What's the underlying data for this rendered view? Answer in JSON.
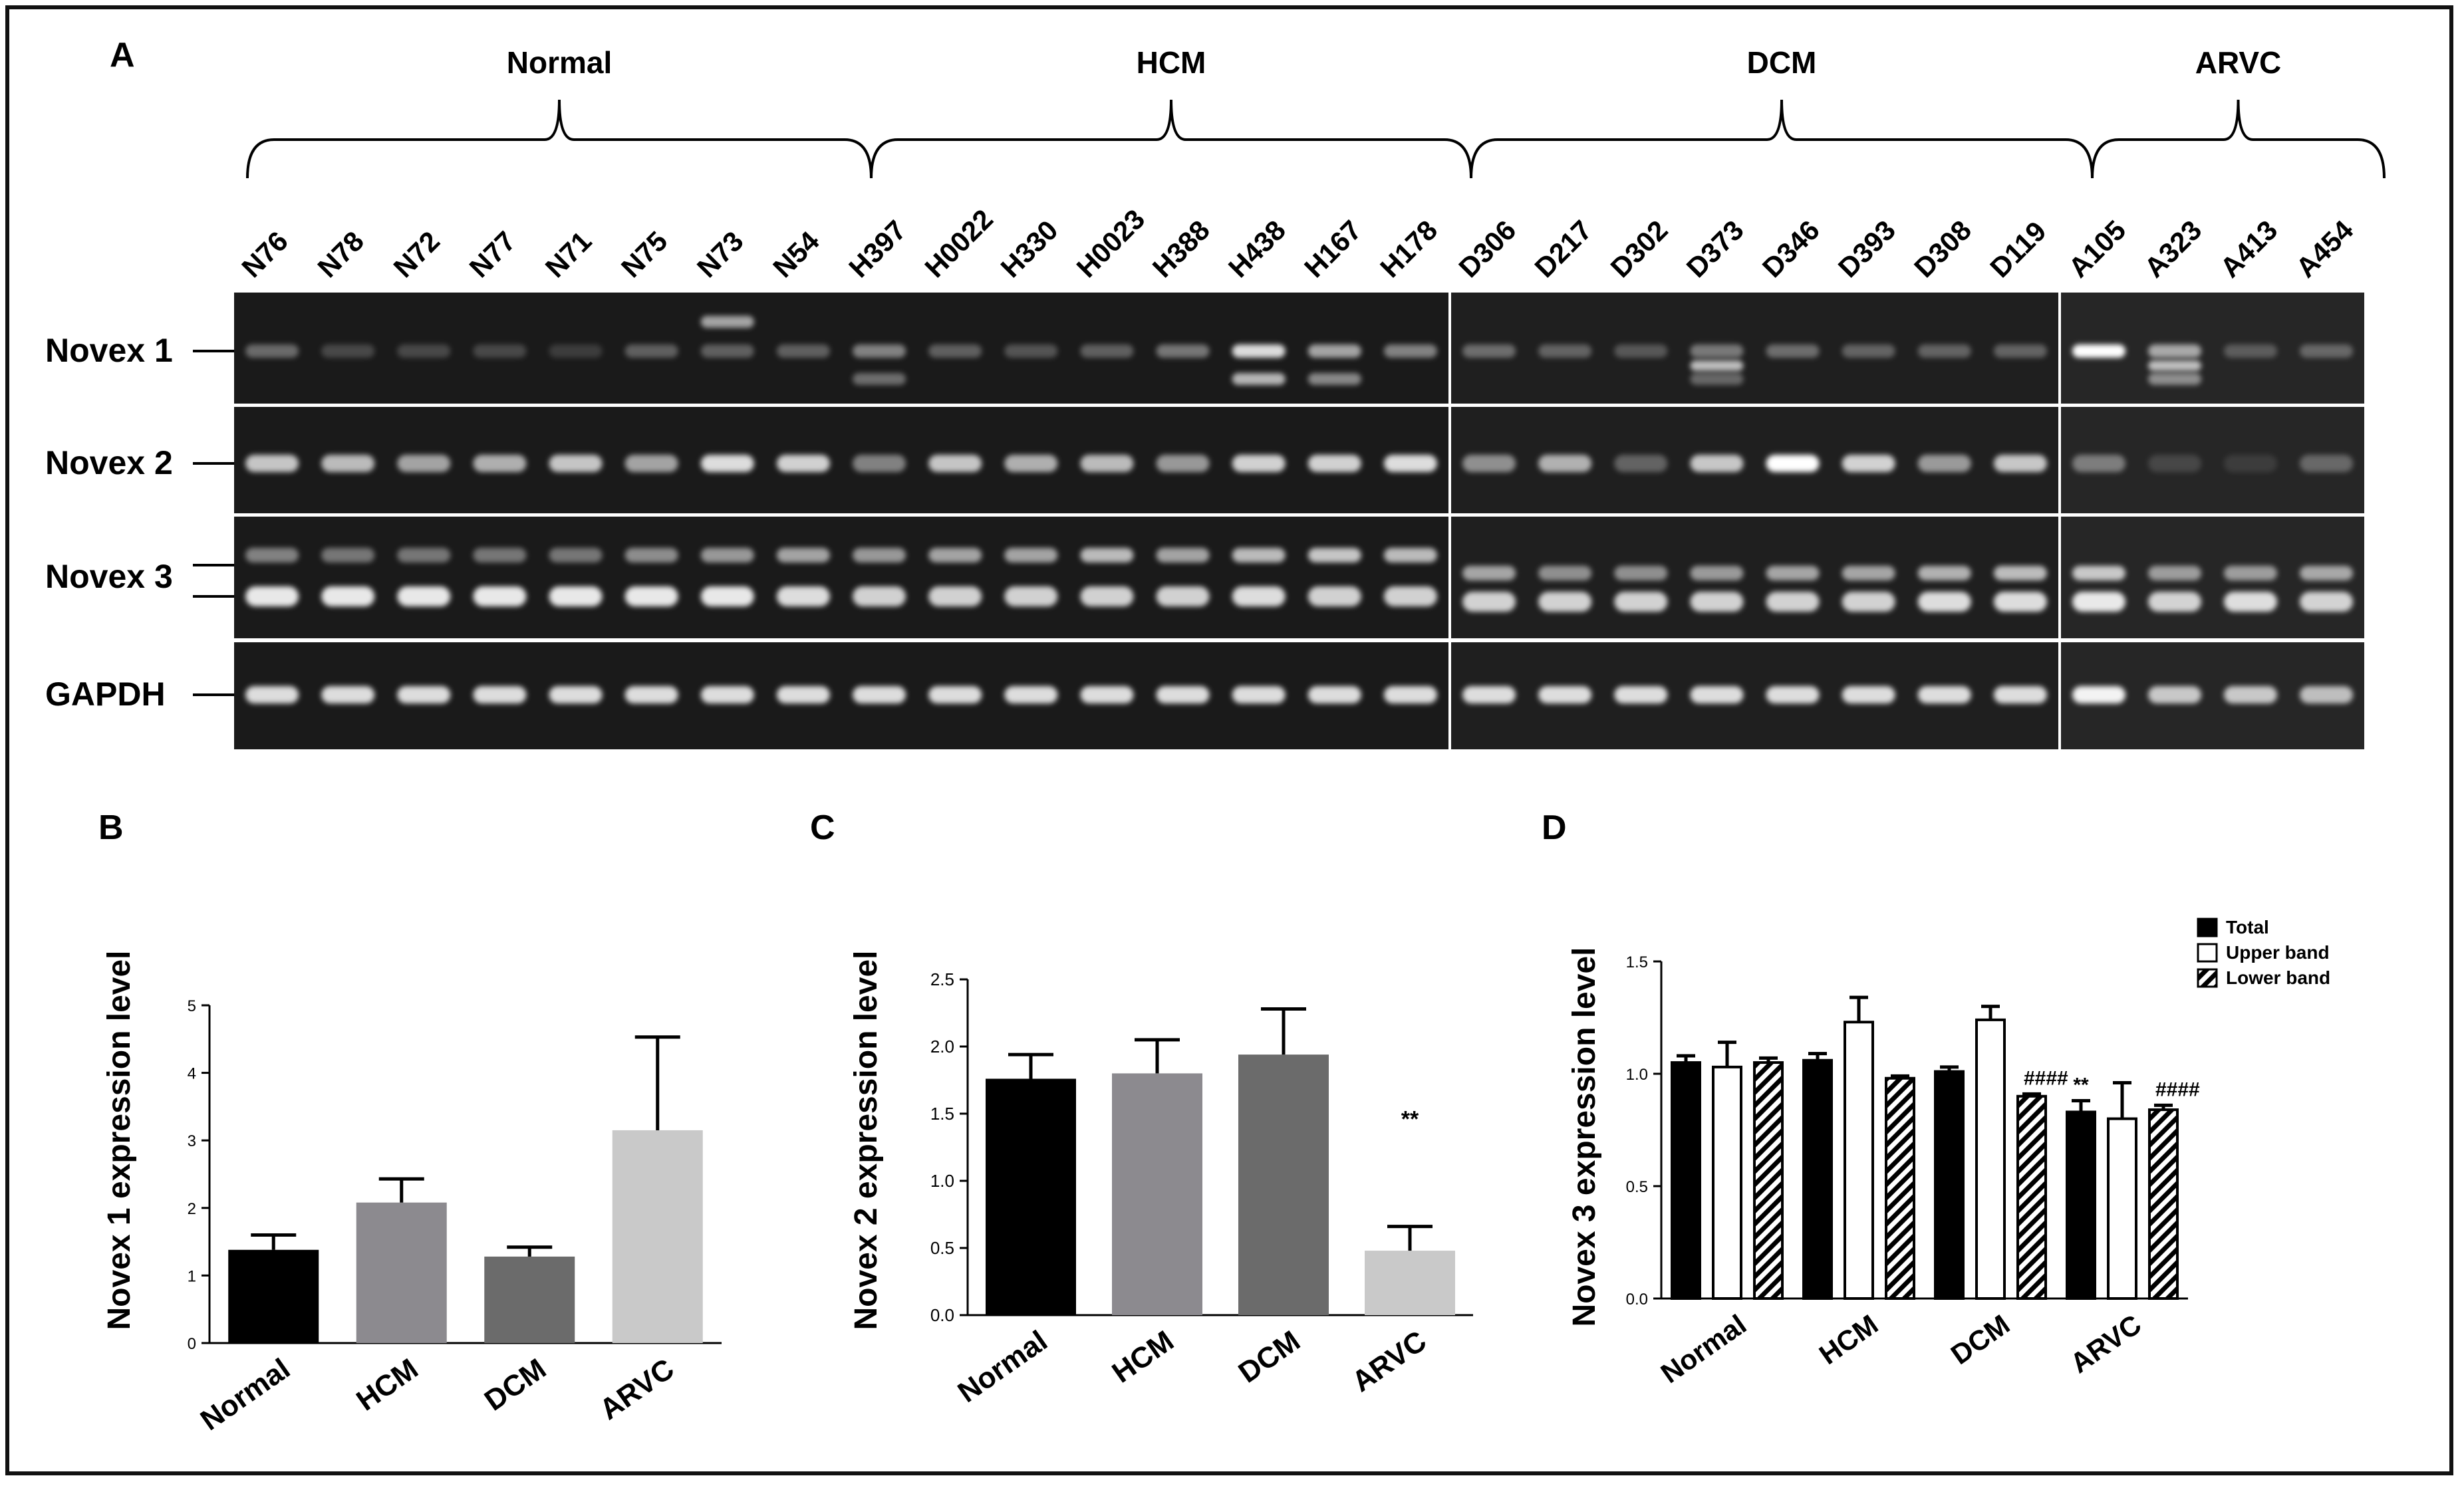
{
  "panelA": {
    "letter": "A",
    "groups": [
      {
        "name": "Normal",
        "lanes": [
          "N76",
          "N78",
          "N72",
          "N77",
          "N71",
          "N75",
          "N73",
          "N54"
        ]
      },
      {
        "name": "HCM",
        "lanes": [
          "H397",
          "H0022",
          "H330",
          "H0023",
          "H388",
          "H438",
          "H167",
          "H178"
        ]
      },
      {
        "name": "DCM",
        "lanes": [
          "D306",
          "D217",
          "D302",
          "D373",
          "D346",
          "D393",
          "D308",
          "D119"
        ]
      },
      {
        "name": "ARVC",
        "lanes": [
          "A105",
          "A323",
          "A413",
          "A454"
        ]
      }
    ],
    "rows": [
      "Novex 1",
      "Novex 2",
      "Novex 3",
      "GAPDH"
    ]
  },
  "chart_data": [
    {
      "panel": "B",
      "type": "bar",
      "categories": [
        "Normal",
        "HCM",
        "DCM",
        "ARVC"
      ],
      "values": [
        1.38,
        2.08,
        1.28,
        3.15
      ],
      "errors": [
        0.22,
        0.35,
        0.14,
        1.38
      ],
      "colors": [
        "#000000",
        "#8c8a8f",
        "#6b6b6b",
        "#c9c9c9"
      ],
      "ylabel": "Novex 1 expression  level",
      "ylim": [
        0,
        5
      ],
      "yticks": [
        "0",
        "1",
        "2",
        "3",
        "4",
        "5"
      ],
      "annotations": []
    },
    {
      "panel": "C",
      "type": "bar",
      "categories": [
        "Normal",
        "HCM",
        "DCM",
        "ARVC"
      ],
      "values": [
        1.76,
        1.8,
        1.94,
        0.48
      ],
      "errors": [
        0.18,
        0.25,
        0.34,
        0.18
      ],
      "colors": [
        "#000000",
        "#8c8a8f",
        "#6b6b6b",
        "#c9c9c9"
      ],
      "ylabel": "Novex 2 expression level",
      "ylim": [
        0,
        2.5
      ],
      "yticks": [
        "0.0",
        "0.5",
        "1.0",
        "1.5",
        "2.0",
        "2.5"
      ],
      "annotations": [
        {
          "category": "ARVC",
          "text": "**"
        }
      ]
    },
    {
      "panel": "D",
      "type": "bar",
      "categories": [
        "Normal",
        "HCM",
        "DCM",
        "ARVC"
      ],
      "series": [
        {
          "name": "Total",
          "values": [
            1.05,
            1.06,
            1.01,
            0.83
          ],
          "errors": [
            0.03,
            0.03,
            0.02,
            0.05
          ],
          "fill": "solid"
        },
        {
          "name": "Upper band",
          "values": [
            1.03,
            1.23,
            1.24,
            0.8
          ],
          "errors": [
            0.11,
            0.11,
            0.06,
            0.16
          ],
          "fill": "white"
        },
        {
          "name": "Lower band",
          "values": [
            1.05,
            0.98,
            0.9,
            0.84
          ],
          "errors": [
            0.02,
            0.01,
            0.01,
            0.02
          ],
          "fill": "hatched"
        }
      ],
      "ylabel": "Novex 3 expression level",
      "ylim": [
        0,
        1.5
      ],
      "yticks": [
        "0.0",
        "0.5",
        "1.0",
        "1.5"
      ],
      "legend_position": "top-right",
      "annotations": [
        {
          "category": "DCM",
          "series": "Lower band",
          "text": "####"
        },
        {
          "category": "ARVC",
          "series": "Total",
          "text": "**"
        },
        {
          "category": "ARVC",
          "series": "Lower band",
          "text": "####"
        }
      ]
    }
  ]
}
